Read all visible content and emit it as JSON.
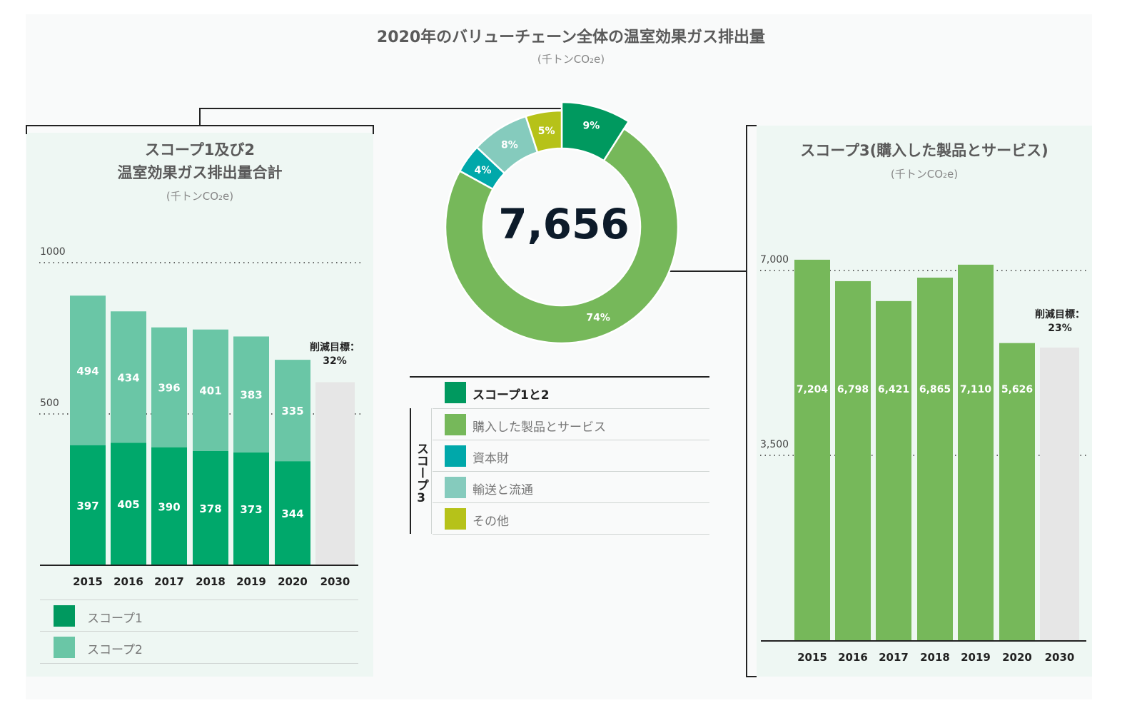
{
  "title": "2020年のバリューチェーン全体の温室効果ガス排出量",
  "unit": "(千トンCO₂e)",
  "colors": {
    "scope1": "#00a86b",
    "scope2": "#6ac6a6",
    "purchased": "#76b85a",
    "capital": "#00a8aa",
    "transport": "#85cbbd",
    "other": "#b6c219",
    "scope12": "#00995f",
    "target": "#e6e6e6"
  },
  "left_panel": {
    "title_line1": "スコープ1及び2",
    "title_line2": "温室効果ガス排出量合計",
    "unit": "(千トンCO₂e)",
    "target_label": "削減目標：",
    "target_value": "32%",
    "legend": [
      {
        "label": "スコープ1",
        "color_key": "scope1"
      },
      {
        "label": "スコープ2",
        "color_key": "scope2"
      }
    ]
  },
  "donut": {
    "total": "7,656"
  },
  "donut_legend": {
    "scope12_label": "スコープ1と2",
    "scope3_label": "スコープ3",
    "items": [
      "購入した製品とサービス",
      "資本財",
      "輸送と流通",
      "その他"
    ]
  },
  "right_panel": {
    "title": "スコープ3(購入した製品とサービス)",
    "unit": "(千トンCO₂e)",
    "target_label": "削減目標：",
    "target_value": "23%"
  },
  "chart_data": [
    {
      "type": "bar",
      "stacked": true,
      "title": "スコープ1及び2 温室効果ガス排出量合計",
      "unit": "(千トンCO₂e)",
      "categories": [
        "2015",
        "2016",
        "2017",
        "2018",
        "2019",
        "2020",
        "2030"
      ],
      "series": [
        {
          "name": "スコープ1",
          "values": [
            397,
            405,
            390,
            378,
            373,
            344,
            null
          ]
        },
        {
          "name": "スコープ2",
          "values": [
            494,
            434,
            396,
            401,
            383,
            335,
            null
          ]
        }
      ],
      "target_2030_total": 605,
      "target_label": "削減目標：32%",
      "yticks": [
        500,
        1000
      ],
      "ylim": [
        0,
        1000
      ],
      "grid": "dotted at ticks"
    },
    {
      "type": "pie",
      "donut": true,
      "title": "2020年のバリューチェーン全体の温室効果ガス排出量",
      "center_label": "7,656",
      "slices": [
        {
          "label": "スコープ1と2",
          "value": 9,
          "color_key": "scope12"
        },
        {
          "label": "購入した製品とサービス",
          "value": 74,
          "color_key": "purchased"
        },
        {
          "label": "資本財",
          "value": 4,
          "color_key": "capital"
        },
        {
          "label": "輸送と流通",
          "value": 8,
          "color_key": "transport"
        },
        {
          "label": "その他",
          "value": 5,
          "color_key": "other"
        }
      ]
    },
    {
      "type": "bar",
      "title": "スコープ3(購入した製品とサービス)",
      "unit": "(千トンCO₂e)",
      "categories": [
        "2015",
        "2016",
        "2017",
        "2018",
        "2019",
        "2020",
        "2030"
      ],
      "values": [
        7204,
        6798,
        6421,
        6865,
        7110,
        5626,
        null
      ],
      "value_labels": [
        "7,204",
        "6,798",
        "6,421",
        "6,865",
        "7,110",
        "5,626",
        ""
      ],
      "target_2030_value": 5540,
      "target_label": "削減目標：23%",
      "yticks": [
        3500,
        7000
      ],
      "ytick_labels": [
        "3,500",
        "7,000"
      ],
      "ylim": [
        0,
        7000
      ],
      "grid": "dotted at ticks"
    }
  ]
}
